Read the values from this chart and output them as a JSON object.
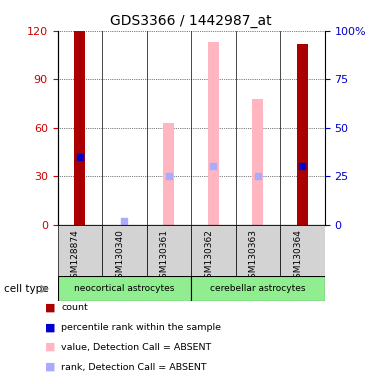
{
  "title": "GDS3366 / 1442987_at",
  "samples": [
    "GSM128874",
    "GSM130340",
    "GSM130361",
    "GSM130362",
    "GSM130363",
    "GSM130364"
  ],
  "ylim_left": [
    0,
    120
  ],
  "ylim_right": [
    0,
    100
  ],
  "yticks_left": [
    0,
    30,
    60,
    90,
    120
  ],
  "yticks_right": [
    0,
    25,
    50,
    75,
    100
  ],
  "ytick_labels_right": [
    "0",
    "25",
    "50",
    "75",
    "100%"
  ],
  "red_bars": [
    {
      "x": 0,
      "value": 120
    },
    {
      "x": 5,
      "value": 112
    }
  ],
  "blue_dots": [
    {
      "x": 0,
      "value": 35
    },
    {
      "x": 5,
      "value": 30
    }
  ],
  "pink_bars": [
    {
      "x": 2,
      "value": 63
    },
    {
      "x": 3,
      "value": 113
    },
    {
      "x": 4,
      "value": 78
    }
  ],
  "light_blue_dots": [
    {
      "x": 1,
      "value": 2
    },
    {
      "x": 2,
      "value": 25
    },
    {
      "x": 3,
      "value": 30
    },
    {
      "x": 4,
      "value": 25
    }
  ],
  "red_color": "#AA0000",
  "blue_color": "#0000CC",
  "pink_color": "#FFB6C1",
  "light_blue_color": "#AAAAFF",
  "axis_left_color": "#CC0000",
  "axis_right_color": "#0000CC",
  "group_color": "#90EE90",
  "neo_label": "neocortical astrocytes",
  "cer_label": "cerebellar astrocytes",
  "cell_type_label": "cell type",
  "legend_items": [
    {
      "label": "count",
      "color": "#AA0000"
    },
    {
      "label": "percentile rank within the sample",
      "color": "#0000CC"
    },
    {
      "label": "value, Detection Call = ABSENT",
      "color": "#FFB6C1"
    },
    {
      "label": "rank, Detection Call = ABSENT",
      "color": "#AAAAFF"
    }
  ],
  "bar_width": 0.25
}
